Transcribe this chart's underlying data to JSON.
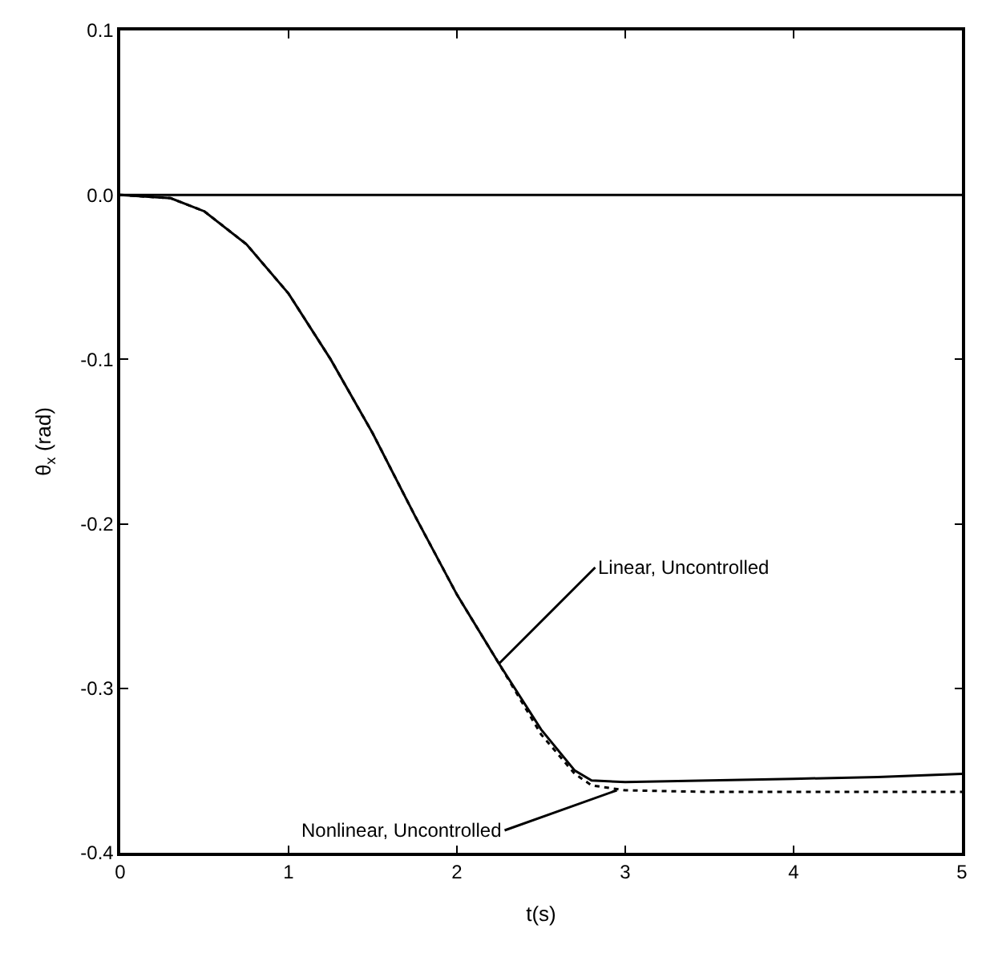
{
  "chart_data": {
    "type": "line",
    "xlabel": "t(s)",
    "ylabel": "θ$_{x}$ (rad)",
    "xlim": [
      0,
      5
    ],
    "xticks": [
      0,
      1,
      2,
      3,
      4,
      5
    ],
    "ylim": [
      -0.4,
      0.1
    ],
    "yticks": [
      {
        "value": 0.1,
        "label": "0.1"
      },
      {
        "value": 0,
        "label": "0.0"
      },
      {
        "value": -0.1,
        "label": "-0.1"
      },
      {
        "value": -0.2,
        "label": "-0.2"
      },
      {
        "value": -0.3,
        "label": "-0.3"
      },
      {
        "value": -0.4,
        "label": "-0.4"
      }
    ],
    "ref_lines": [
      {
        "axis": "y",
        "value": 0,
        "color": "#000000",
        "line_style": "solid"
      }
    ],
    "series": [
      {
        "color": "#000000",
        "line_style": "solid",
        "x": [
          0,
          0.3,
          0.5,
          0.75,
          1.0,
          1.25,
          1.5,
          1.75,
          2.0,
          2.25,
          2.5,
          2.7,
          2.8,
          3.0,
          3.5,
          4.0,
          4.5,
          5.0
        ],
        "values": [
          0,
          -0.002,
          -0.01,
          -0.03,
          -0.06,
          -0.1,
          -0.145,
          -0.195,
          -0.243,
          -0.285,
          -0.325,
          -0.35,
          -0.356,
          -0.357,
          -0.356,
          -0.355,
          -0.354,
          -0.352
        ]
      },
      {
        "color": "#000000",
        "line_style": "dotted",
        "x": [
          0,
          0.3,
          0.5,
          0.75,
          1.0,
          1.25,
          1.5,
          1.75,
          2.0,
          2.25,
          2.5,
          2.7,
          2.8,
          3.0,
          3.5,
          4.0,
          4.5,
          5.0
        ],
        "values": [
          0,
          -0.002,
          -0.01,
          -0.03,
          -0.06,
          -0.1,
          -0.145,
          -0.195,
          -0.243,
          -0.285,
          -0.328,
          -0.352,
          -0.359,
          -0.362,
          -0.363,
          -0.363,
          -0.363,
          -0.363
        ]
      }
    ],
    "annotations": [
      {
        "text": "Linear, Uncontrolled",
        "x": 2.25,
        "y": -0.285
      },
      {
        "text": "Nonlinear, Uncontrolled",
        "x": 2.95,
        "y": -0.362
      }
    ]
  }
}
